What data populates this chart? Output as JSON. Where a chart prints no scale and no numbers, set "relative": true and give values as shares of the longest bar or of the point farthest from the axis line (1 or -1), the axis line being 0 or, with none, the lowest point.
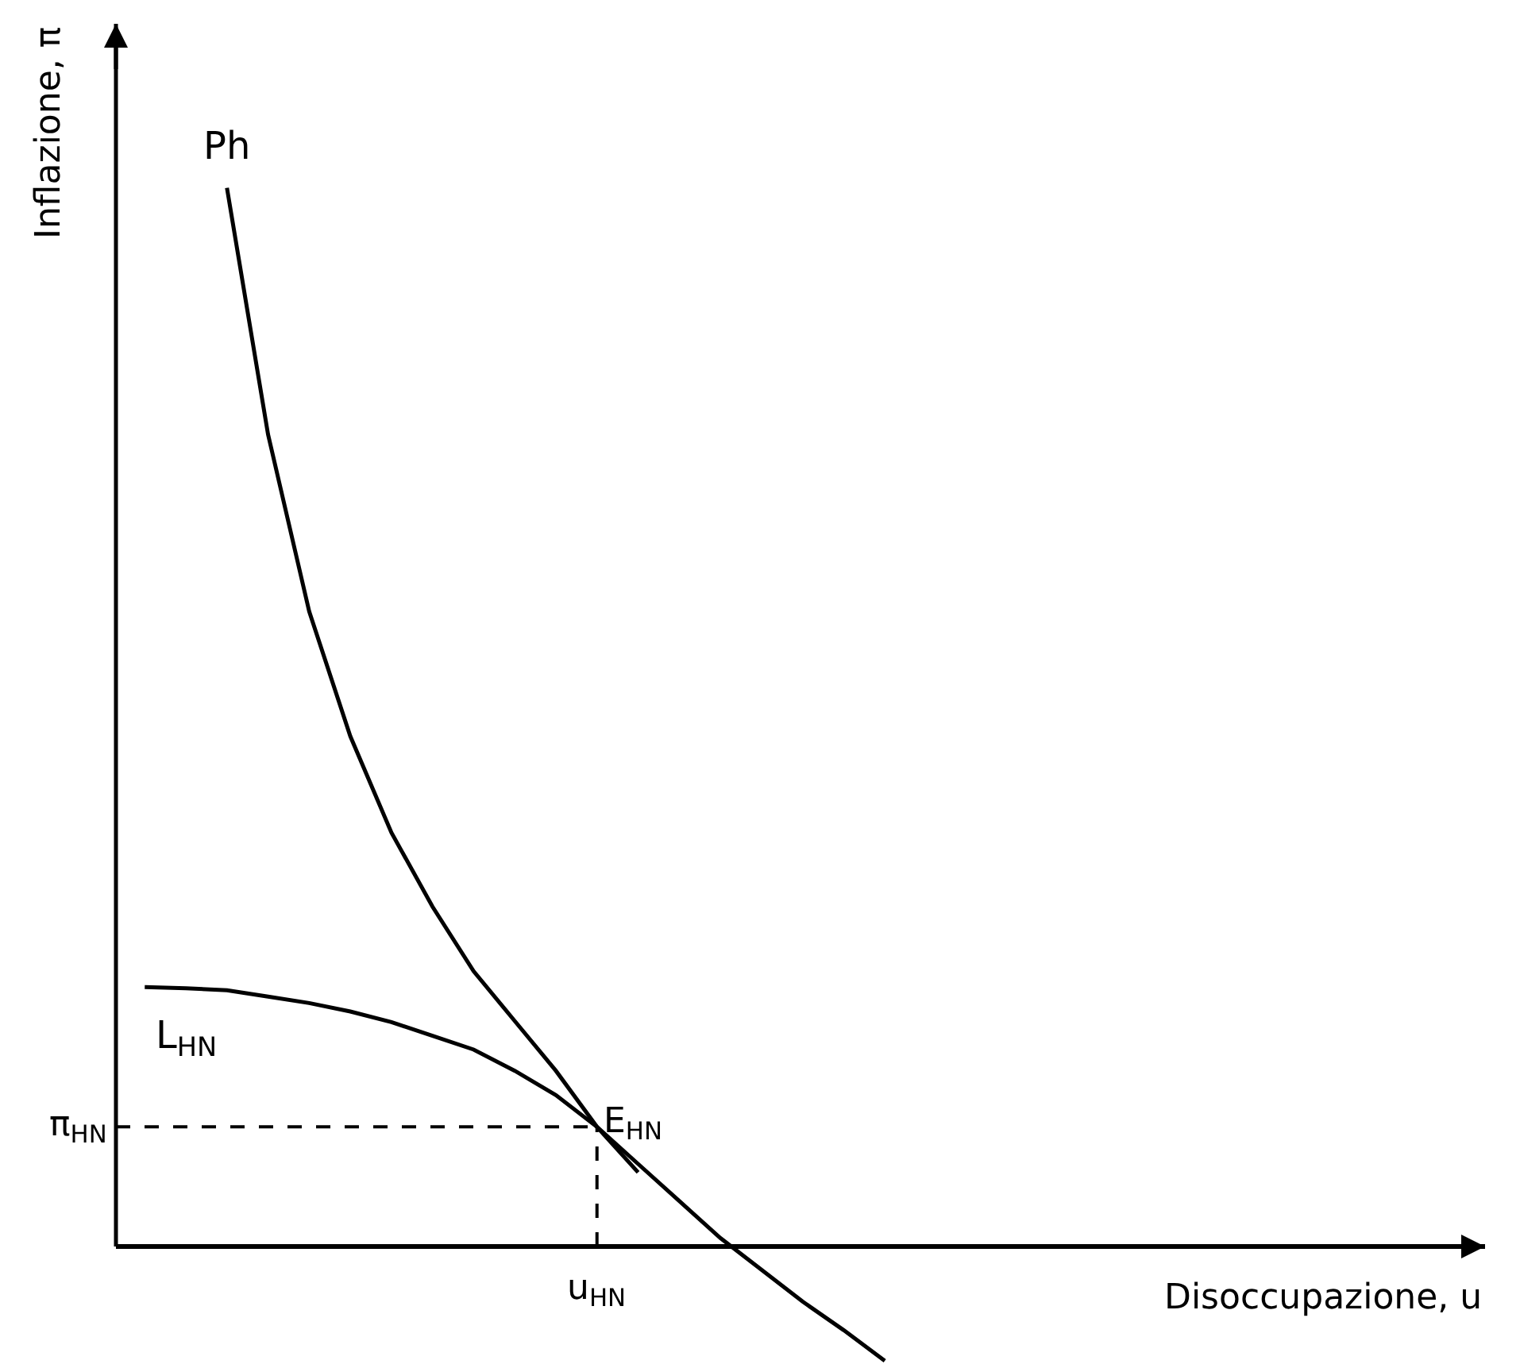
{
  "chart_data": {
    "type": "line",
    "relative": true,
    "ylabel": "Inflazione, π",
    "categories": [
      null,
      null,
      null,
      null,
      null,
      null,
      null,
      null,
      null,
      null,
      null,
      null,
      null,
      null,
      null,
      null,
      null,
      null,
      null
    ],
    "series": [
      {
        "name": "Ph",
        "color": "#000000",
        "values": [
          null,
          null,
          1.0,
          0.767,
          0.6,
          0.482,
          0.391,
          0.321,
          0.26,
          0.213,
          0.166,
          0.113,
          0.078,
          0.043,
          0.008,
          -0.022,
          -0.052,
          -0.079,
          -0.108
        ]
      },
      {
        "name": "L$_{HN}$",
        "color": "#000000",
        "values": [
          0.245,
          0.244,
          0.242,
          0.236,
          0.23,
          0.222,
          0.212,
          0.199,
          0.186,
          0.166,
          0.143,
          0.113,
          0.07,
          null,
          null,
          null,
          null,
          null,
          null
        ]
      }
    ],
    "ref_lines": [
      {
        "axis": "y",
        "value": 0.113,
        "label": "π$_{HN}$",
        "line_style": "dashed",
        "color": "#000000"
      }
    ],
    "annotations": [
      "E$_{HN}$",
      "u$_{HN}$",
      "Disoccupazione, u"
    ],
    "grid": false,
    "legend": false,
    "marker": "none",
    "line_style": "solid"
  }
}
